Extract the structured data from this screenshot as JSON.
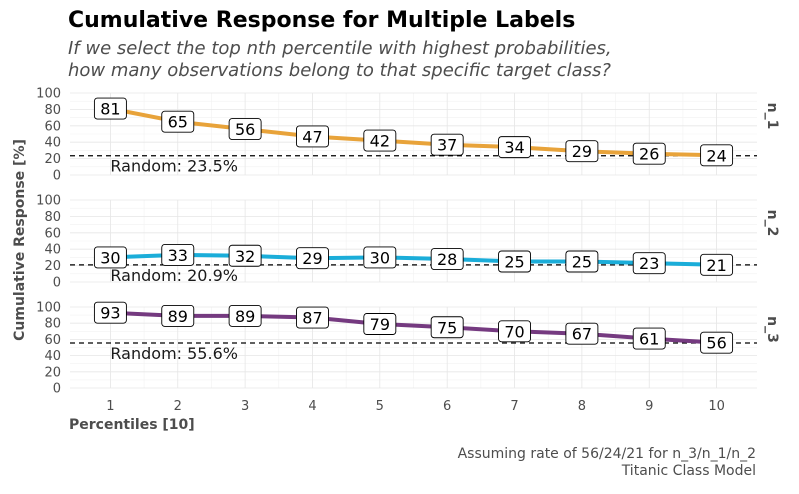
{
  "title": "Cumulative Response for Multiple Labels",
  "subtitle_lines": [
    "If we select the top nth percentile with highest probabilities,",
    "how many observations belong to that specific target class?"
  ],
  "caption_lines": [
    "Assuming rate of 56/24/21 for n_3/n_1/n_2",
    "Titanic Class Model"
  ],
  "chart_data": {
    "type": "line",
    "xlabel": "Percentiles [10]",
    "ylabel": "Cumulative Response [%]",
    "x": [
      1,
      2,
      3,
      4,
      5,
      6,
      7,
      8,
      9,
      10
    ],
    "xlim": [
      0.4,
      10.6
    ],
    "ylim": [
      0,
      100
    ],
    "y_ticks": [
      0,
      20,
      40,
      60,
      80,
      100
    ],
    "grid": true,
    "legend": "none",
    "facets": [
      {
        "label": "n_1",
        "color": "#E8A33A",
        "values": [
          81,
          65,
          56,
          47,
          42,
          37,
          34,
          29,
          26,
          24
        ],
        "random_rate": 23.5,
        "random_label": "Random: 23.5%"
      },
      {
        "label": "n_2",
        "color": "#1BADD9",
        "values": [
          30,
          33,
          32,
          29,
          30,
          28,
          25,
          25,
          23,
          21
        ],
        "random_rate": 20.9,
        "random_label": "Random: 20.9%"
      },
      {
        "label": "n_3",
        "color": "#753A80",
        "values": [
          93,
          89,
          89,
          87,
          79,
          75,
          70,
          67,
          61,
          56
        ],
        "random_rate": 55.6,
        "random_label": "Random: 55.6%"
      }
    ]
  }
}
